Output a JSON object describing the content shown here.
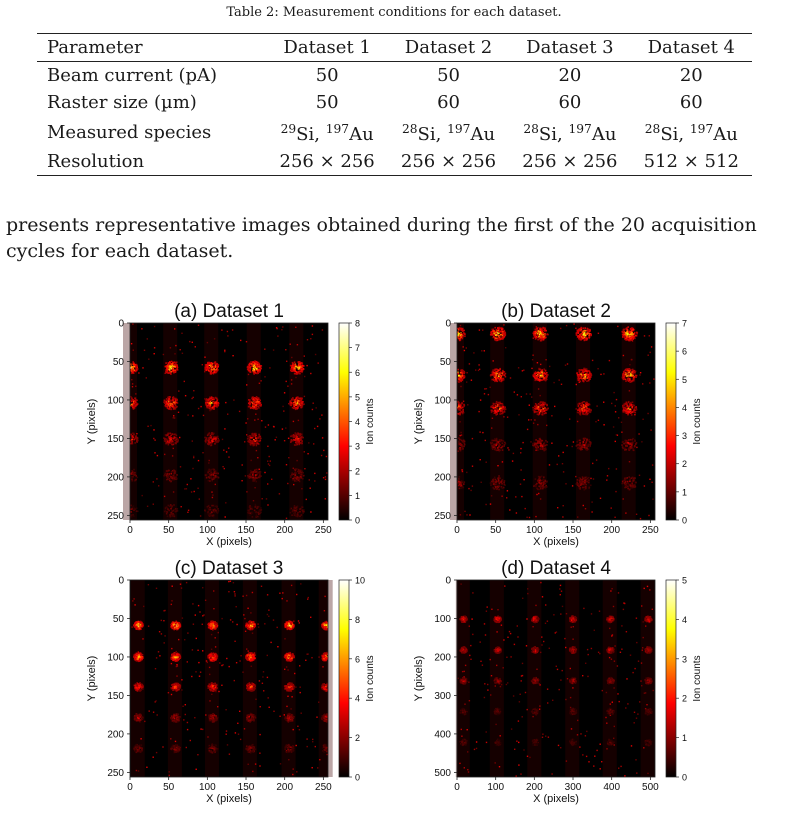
{
  "table": {
    "caption": "Table 2: Measurement conditions for each dataset.",
    "headers": [
      "Parameter",
      "Dataset 1",
      "Dataset 2",
      "Dataset 3",
      "Dataset 4"
    ],
    "rows": [
      {
        "param": "Beam current (pA)",
        "values": [
          "50",
          "50",
          "20",
          "20"
        ]
      },
      {
        "param": "Raster size (µm)",
        "values": [
          "50",
          "60",
          "60",
          "60"
        ]
      },
      {
        "param": "Measured species",
        "values": [
          "29Si, 197Au",
          "28Si, 197Au",
          "28Si, 197Au",
          "28Si, 197Au"
        ]
      },
      {
        "param": "Resolution",
        "values": [
          "256 × 256",
          "256 × 256",
          "256 × 256",
          "512 × 512"
        ]
      }
    ]
  },
  "paragraph": "presents representative images obtained during the first of the 20 acquisition cycles for each dataset.",
  "chart_data": [
    {
      "type": "heatmap",
      "title": "(a) Dataset 1",
      "xlabel": "X (pixels)",
      "ylabel": "Y (pixels)",
      "xlim": [
        0,
        256
      ],
      "ylim": [
        256,
        0
      ],
      "xticks": [
        0,
        50,
        100,
        150,
        200,
        250
      ],
      "yticks": [
        0,
        50,
        100,
        150,
        200,
        250
      ],
      "colorbar": {
        "label": "Ion counts",
        "min": 0,
        "max": 8,
        "ticks": [
          0,
          1,
          2,
          3,
          4,
          5,
          6,
          7,
          8
        ]
      },
      "colormap": "hot",
      "spot_columns": [
        0,
        52,
        105,
        160,
        215
      ],
      "spot_rows": [
        [
          57,
          0.85
        ],
        [
          103,
          0.7
        ],
        [
          150,
          0.45
        ],
        [
          197,
          0.25
        ],
        [
          243,
          0.15
        ]
      ],
      "spot_size": 15
    },
    {
      "type": "heatmap",
      "title": "(b) Dataset 2",
      "xlabel": "X (pixels)",
      "ylabel": "Y (pixels)",
      "xlim": [
        0,
        256
      ],
      "ylim": [
        256,
        0
      ],
      "xticks": [
        0,
        50,
        100,
        150,
        200,
        250
      ],
      "yticks": [
        0,
        50,
        100,
        150,
        200,
        250
      ],
      "colorbar": {
        "label": "Ion counts",
        "min": 0,
        "max": 7,
        "ticks": [
          0,
          1,
          2,
          3,
          4,
          5,
          6,
          7
        ]
      },
      "colormap": "hot",
      "spot_columns": [
        0,
        52,
        107,
        163,
        222
      ],
      "spot_rows": [
        [
          13,
          0.85
        ],
        [
          67,
          0.75
        ],
        [
          110,
          0.6
        ],
        [
          157,
          0.3
        ],
        [
          207,
          0.25
        ]
      ],
      "spot_size": 16
    },
    {
      "type": "heatmap",
      "title": "(c) Dataset 3",
      "xlabel": "X (pixels)",
      "ylabel": "Y (pixels)",
      "xlim": [
        0,
        256
      ],
      "ylim": [
        256,
        0
      ],
      "xticks": [
        0,
        50,
        100,
        150,
        200,
        250
      ],
      "yticks": [
        0,
        50,
        100,
        150,
        200,
        250
      ],
      "colorbar": {
        "label": "Ion counts",
        "min": 0,
        "max": 10,
        "ticks": [
          0,
          2,
          4,
          6,
          8,
          10
        ]
      },
      "colormap": "hot",
      "spot_columns": [
        10,
        58,
        106,
        155,
        205,
        253
      ],
      "spot_rows": [
        [
          58,
          0.9
        ],
        [
          99,
          0.8
        ],
        [
          138,
          0.55
        ],
        [
          178,
          0.3
        ],
        [
          218,
          0.2
        ]
      ],
      "spot_size": 10
    },
    {
      "type": "heatmap",
      "title": "(d) Dataset 4",
      "xlabel": "X (pixels)",
      "ylabel": "Y (pixels)",
      "xlim": [
        0,
        512
      ],
      "ylim": [
        512,
        0
      ],
      "xticks": [
        0,
        100,
        200,
        300,
        400,
        500
      ],
      "yticks": [
        0,
        100,
        200,
        300,
        400,
        500
      ],
      "colorbar": {
        "label": "Ion counts",
        "min": 0,
        "max": 5,
        "ticks": [
          0,
          1,
          2,
          3,
          4,
          5
        ]
      },
      "colormap": "hot",
      "spot_columns": [
        15,
        103,
        200,
        298,
        395,
        493
      ],
      "spot_rows": [
        [
          100,
          0.5
        ],
        [
          180,
          0.42
        ],
        [
          260,
          0.3
        ],
        [
          340,
          0.15
        ],
        [
          420,
          0.1
        ]
      ],
      "spot_size": 15
    }
  ]
}
